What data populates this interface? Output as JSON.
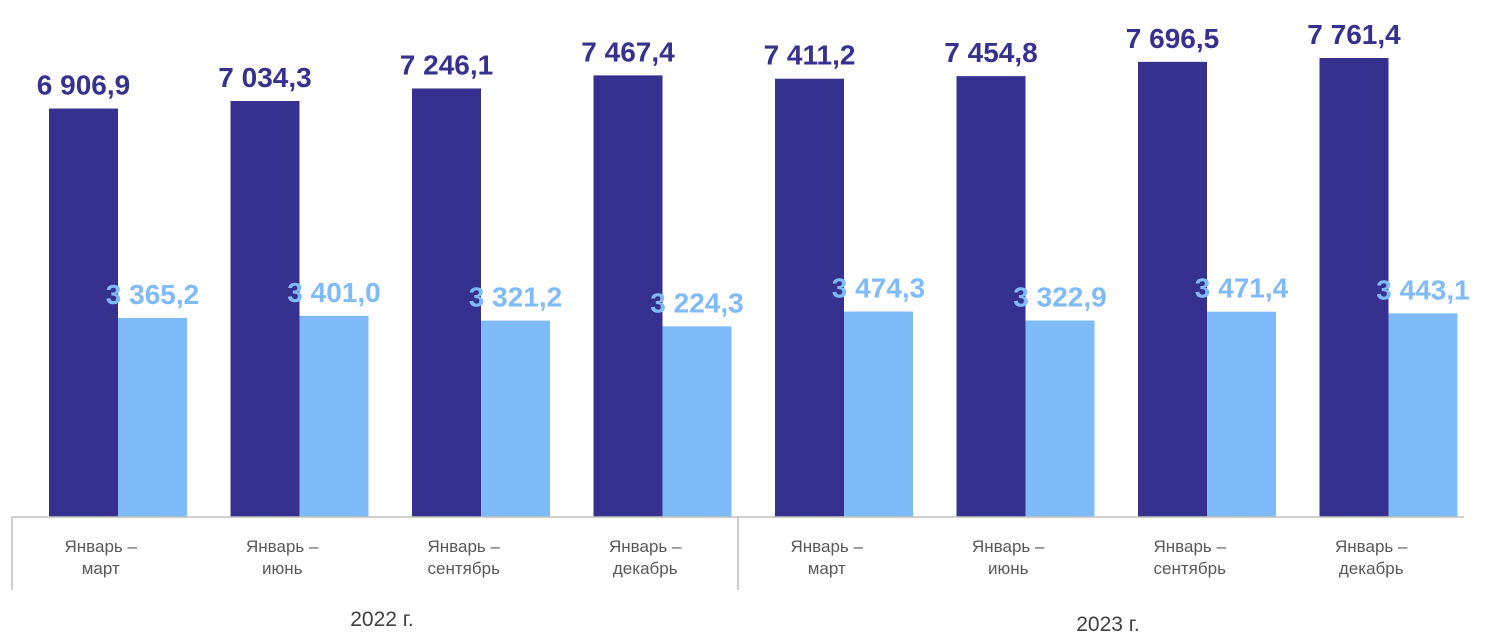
{
  "chart_data": {
    "type": "bar",
    "categories": [
      [
        "Январь –",
        "март"
      ],
      [
        "Январь –",
        "июнь"
      ],
      [
        "Январь –",
        "сентябрь"
      ],
      [
        "Январь –",
        "декабрь"
      ],
      [
        "Январь –",
        "март"
      ],
      [
        "Январь –",
        "июнь"
      ],
      [
        "Январь –",
        "сентябрь"
      ],
      [
        "Январь –",
        "декабрь"
      ]
    ],
    "groups": [
      {
        "label": "2022 г.",
        "from": 0,
        "to": 3
      },
      {
        "label": "2023 г.",
        "from": 4,
        "to": 7
      }
    ],
    "series": [
      {
        "values": [
          6906.9,
          7034.3,
          7246.1,
          7467.4,
          7411.2,
          7454.8,
          7696.5,
          7761.4
        ],
        "labels": [
          "6 906,9",
          "7 034,3",
          "7 246,1",
          "7 467,4",
          "7 411,2",
          "7 454,8",
          "7 696,5",
          "7 761,4"
        ],
        "color": "#36318f"
      },
      {
        "values": [
          3365.2,
          3401.0,
          3321.2,
          3224.3,
          3474.3,
          3322.9,
          3471.4,
          3443.1
        ],
        "labels": [
          "3 365,2",
          "3 401,0",
          "3 321,2",
          "3 224,3",
          "3 474,3",
          "3 322,9",
          "3 471,4",
          "3 443,1"
        ],
        "color": "#7fbaf9"
      }
    ],
    "title": "",
    "xlabel": "",
    "ylabel": "",
    "ylim": [
      0,
      7761.4
    ],
    "grid": false,
    "legend": "none",
    "data_labels": true
  }
}
